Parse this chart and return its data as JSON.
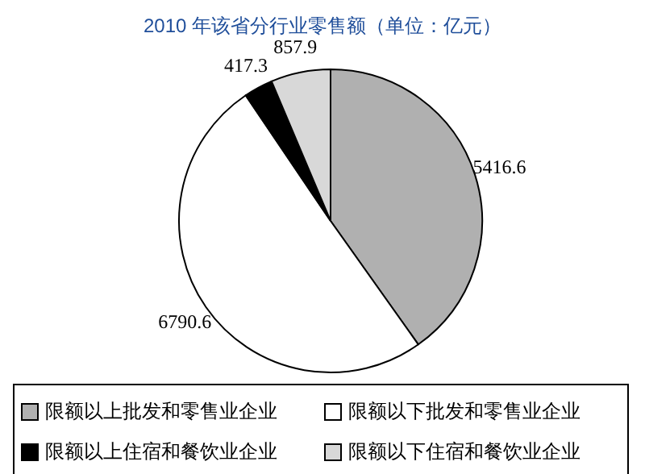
{
  "chart_data": {
    "type": "pie",
    "title": "2010 年该省分行业零售额（单位：亿元）",
    "categories": [
      "限额以上批发和零售业企业",
      "限额以下批发和零售业企业",
      "限额以上住宿和餐饮业企业",
      "限额以下住宿和餐饮业企业"
    ],
    "values": [
      5416.6,
      6790.6,
      417.3,
      857.9
    ],
    "colors": [
      "#b0b0b0",
      "#ffffff",
      "#000000",
      "#d8d8d8"
    ],
    "data_labels": true,
    "legend": "bottom"
  }
}
